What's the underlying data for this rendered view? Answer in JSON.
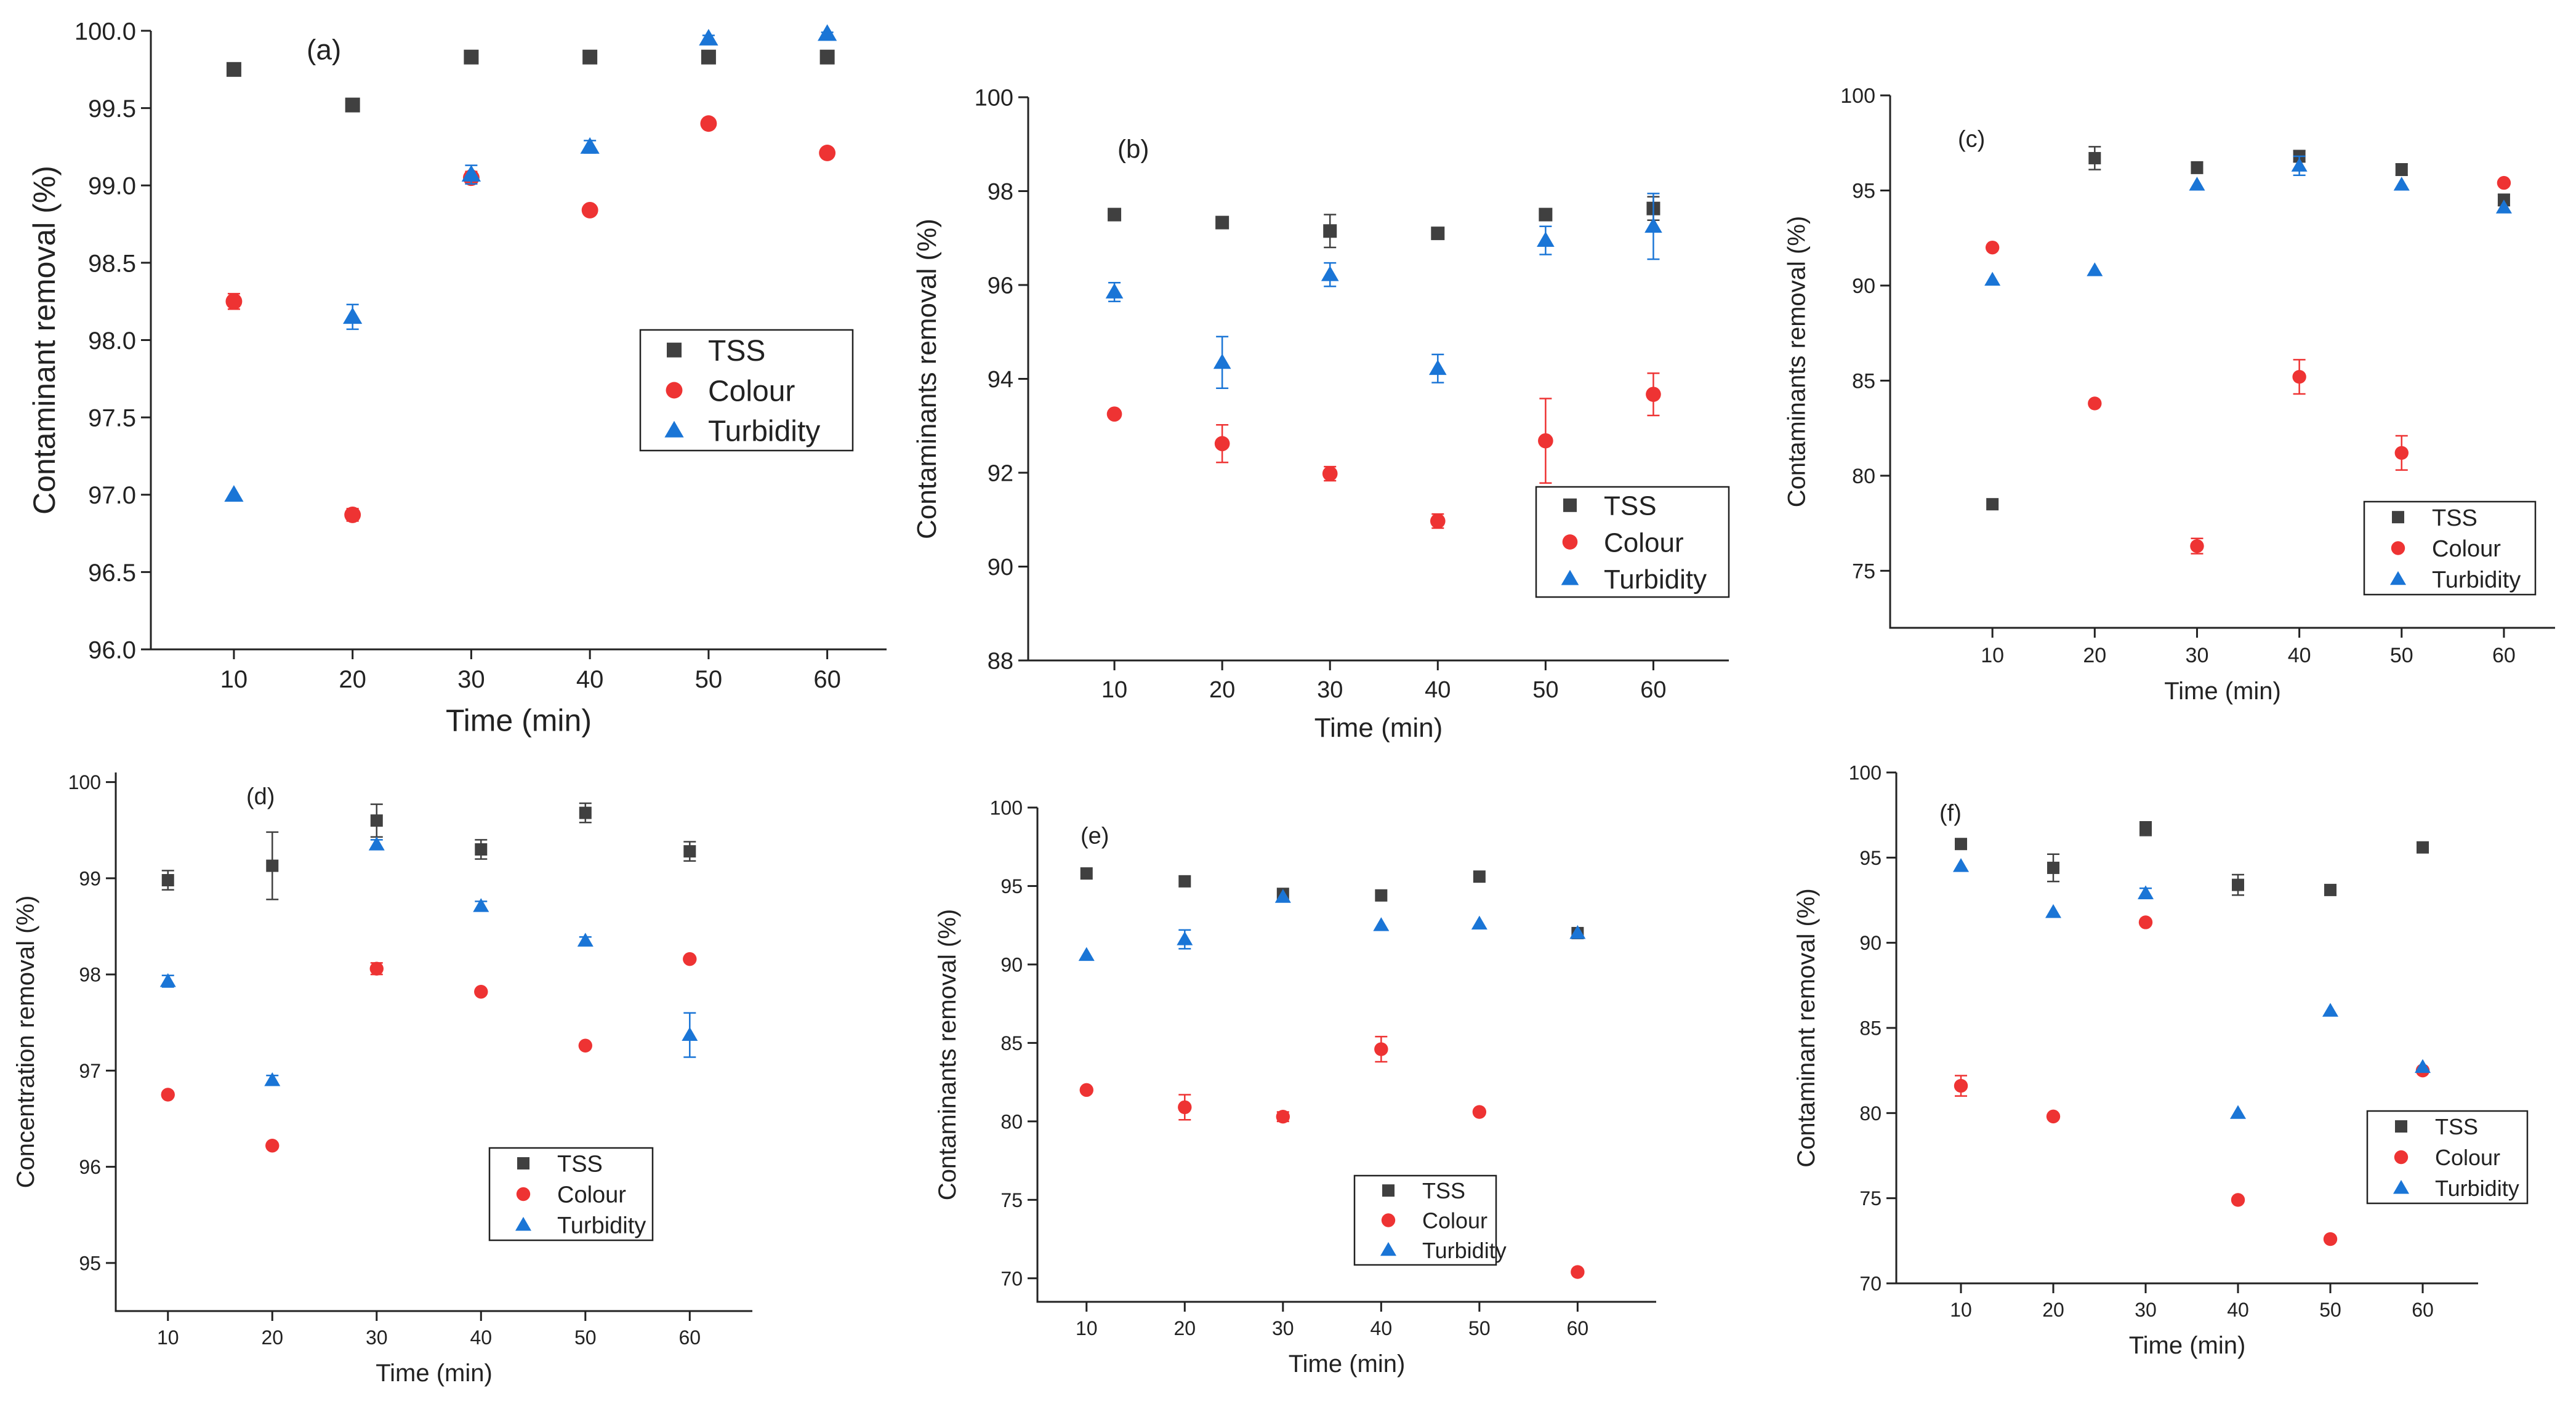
{
  "chart_data": [
    {
      "panel": "(a)",
      "type": "scatter",
      "xlabel": "Time (min)",
      "ylabel": "Contaminant removal (%)",
      "x": [
        10,
        20,
        30,
        40,
        50,
        60
      ],
      "xlim": [
        3,
        65
      ],
      "ylim": [
        96.0,
        100.0
      ],
      "yticks": [
        "96.0",
        "96.5",
        "97.0",
        "97.5",
        "98.0",
        "98.5",
        "99.0",
        "99.5",
        "100.0"
      ],
      "series": [
        {
          "name": "TSS",
          "values": [
            99.75,
            99.52,
            99.83,
            99.83,
            99.83,
            99.83
          ],
          "errors": [
            0,
            0,
            0,
            0,
            0,
            0
          ]
        },
        {
          "name": "Colour",
          "values": [
            98.25,
            96.87,
            99.05,
            98.84,
            99.4,
            99.21
          ],
          "errors": [
            0.05,
            0.04,
            0.04,
            0.03,
            0.03,
            0.03
          ]
        },
        {
          "name": "Turbidity",
          "values": [
            97.0,
            98.15,
            99.07,
            99.25,
            99.95,
            99.98
          ],
          "errors": [
            0,
            0.08,
            0.06,
            0.04,
            0.02,
            0.01
          ]
        }
      ]
    },
    {
      "panel": "(b)",
      "type": "scatter",
      "xlabel": "Time (min)",
      "ylabel": "Contaminants removal (%)",
      "x": [
        10,
        20,
        30,
        40,
        50,
        60
      ],
      "xlim": [
        2,
        67
      ],
      "ylim": [
        88,
        100
      ],
      "yticks": [
        "88",
        "90",
        "92",
        "94",
        "96",
        "98",
        "100"
      ],
      "series": [
        {
          "name": "TSS",
          "values": [
            97.5,
            97.33,
            97.15,
            97.1,
            97.5,
            97.63
          ],
          "errors": [
            0,
            0,
            0.35,
            0.1,
            0,
            0.25
          ]
        },
        {
          "name": "Colour",
          "values": [
            93.25,
            92.62,
            91.98,
            90.97,
            92.68,
            93.67
          ],
          "errors": [
            0,
            0.4,
            0.15,
            0.15,
            0.9,
            0.45
          ]
        },
        {
          "name": "Turbidity",
          "values": [
            95.85,
            94.35,
            96.22,
            94.22,
            96.95,
            97.25
          ],
          "errors": [
            0.2,
            0.55,
            0.25,
            0.3,
            0.3,
            0.7
          ]
        }
      ]
    },
    {
      "panel": "(c)",
      "type": "scatter",
      "xlabel": "Time (min)",
      "ylabel": "Contaminants removal (%)",
      "x": [
        10,
        20,
        30,
        40,
        50,
        60
      ],
      "xlim": [
        0,
        65
      ],
      "ylim": [
        72,
        100
      ],
      "yticks": [
        "75",
        "80",
        "85",
        "90",
        "95",
        "100"
      ],
      "series": [
        {
          "name": "TSS",
          "values": [
            78.5,
            96.7,
            96.2,
            96.8,
            96.1,
            94.5
          ],
          "errors": [
            0,
            0.6,
            0.3,
            0.3,
            0.3,
            0.3
          ]
        },
        {
          "name": "Colour",
          "values": [
            92.0,
            83.8,
            76.3,
            85.2,
            81.2,
            95.4
          ],
          "errors": [
            0,
            0,
            0.4,
            0.9,
            0.9,
            0
          ]
        },
        {
          "name": "Turbidity",
          "values": [
            90.3,
            90.8,
            95.3,
            96.3,
            95.3,
            94.1
          ],
          "errors": [
            0,
            0,
            0,
            0.5,
            0,
            0
          ]
        }
      ]
    },
    {
      "panel": "(d)",
      "type": "scatter",
      "xlabel": "Time (min)",
      "ylabel": "Concentration removal (%)",
      "x": [
        10,
        20,
        30,
        40,
        50,
        60
      ],
      "xlim": [
        5,
        66
      ],
      "ylim": [
        94.5,
        100.1
      ],
      "yticks": [
        "95",
        "96",
        "97",
        "98",
        "99",
        "100"
      ],
      "series": [
        {
          "name": "TSS",
          "values": [
            98.98,
            99.13,
            99.6,
            99.3,
            99.68,
            99.28
          ],
          "errors": [
            0.1,
            0.35,
            0.17,
            0.1,
            0.1,
            0.1
          ]
        },
        {
          "name": "Colour",
          "values": [
            96.75,
            96.22,
            98.06,
            97.82,
            97.26,
            98.16
          ],
          "errors": [
            0,
            0,
            0.06,
            0,
            0,
            0
          ]
        },
        {
          "name": "Turbidity",
          "values": [
            97.93,
            96.9,
            99.35,
            98.71,
            98.35,
            97.37
          ],
          "errors": [
            0.06,
            0.05,
            0.05,
            0.05,
            0.04,
            0.23
          ]
        }
      ]
    },
    {
      "panel": "(e)",
      "type": "scatter",
      "xlabel": "Time (min)",
      "ylabel": "Contaminants removal (%)",
      "x": [
        10,
        20,
        30,
        40,
        50,
        60
      ],
      "xlim": [
        5,
        68
      ],
      "ylim": [
        68.5,
        100
      ],
      "yticks": [
        "70",
        "75",
        "80",
        "85",
        "90",
        "95",
        "100"
      ],
      "series": [
        {
          "name": "TSS",
          "values": [
            95.8,
            95.3,
            94.5,
            94.4,
            95.6,
            92.0
          ],
          "errors": [
            0,
            0,
            0,
            0,
            0,
            0
          ]
        },
        {
          "name": "Colour",
          "values": [
            82.0,
            80.9,
            80.3,
            84.6,
            80.6,
            70.4
          ],
          "errors": [
            0,
            0.8,
            0.3,
            0.8,
            0,
            0
          ]
        },
        {
          "name": "Turbidity",
          "values": [
            90.6,
            91.6,
            94.3,
            92.5,
            92.6,
            92.0
          ],
          "errors": [
            0,
            0.6,
            0,
            0,
            0,
            0
          ]
        }
      ]
    },
    {
      "panel": "(f)",
      "type": "scatter",
      "xlabel": "Time (min)",
      "ylabel": "Contaminant removal (%)",
      "x": [
        10,
        20,
        30,
        40,
        50,
        60
      ],
      "xlim": [
        3,
        66
      ],
      "ylim": [
        70,
        100
      ],
      "yticks": [
        "70",
        "75",
        "80",
        "85",
        "90",
        "95",
        "100"
      ],
      "series": [
        {
          "name": "TSS",
          "values": [
            95.8,
            94.4,
            96.7,
            93.4,
            93.1,
            95.6
          ],
          "errors": [
            0,
            0.8,
            0.4,
            0.6,
            0,
            0
          ]
        },
        {
          "name": "Colour",
          "values": [
            81.6,
            79.8,
            91.2,
            74.9,
            72.6,
            82.5
          ],
          "errors": [
            0.6,
            0,
            0,
            0,
            0,
            0
          ]
        },
        {
          "name": "Turbidity",
          "values": [
            94.5,
            91.8,
            92.9,
            80.0,
            86.0,
            82.7
          ],
          "errors": [
            0,
            0,
            0.3,
            0,
            0,
            0
          ]
        }
      ]
    }
  ],
  "series_colors": {
    "TSS": "#404040",
    "Colour": "#ee3333",
    "Turbidity": "#1a75d6"
  },
  "series_markers": {
    "TSS": "square",
    "Colour": "circle",
    "Turbidity": "triangle"
  }
}
